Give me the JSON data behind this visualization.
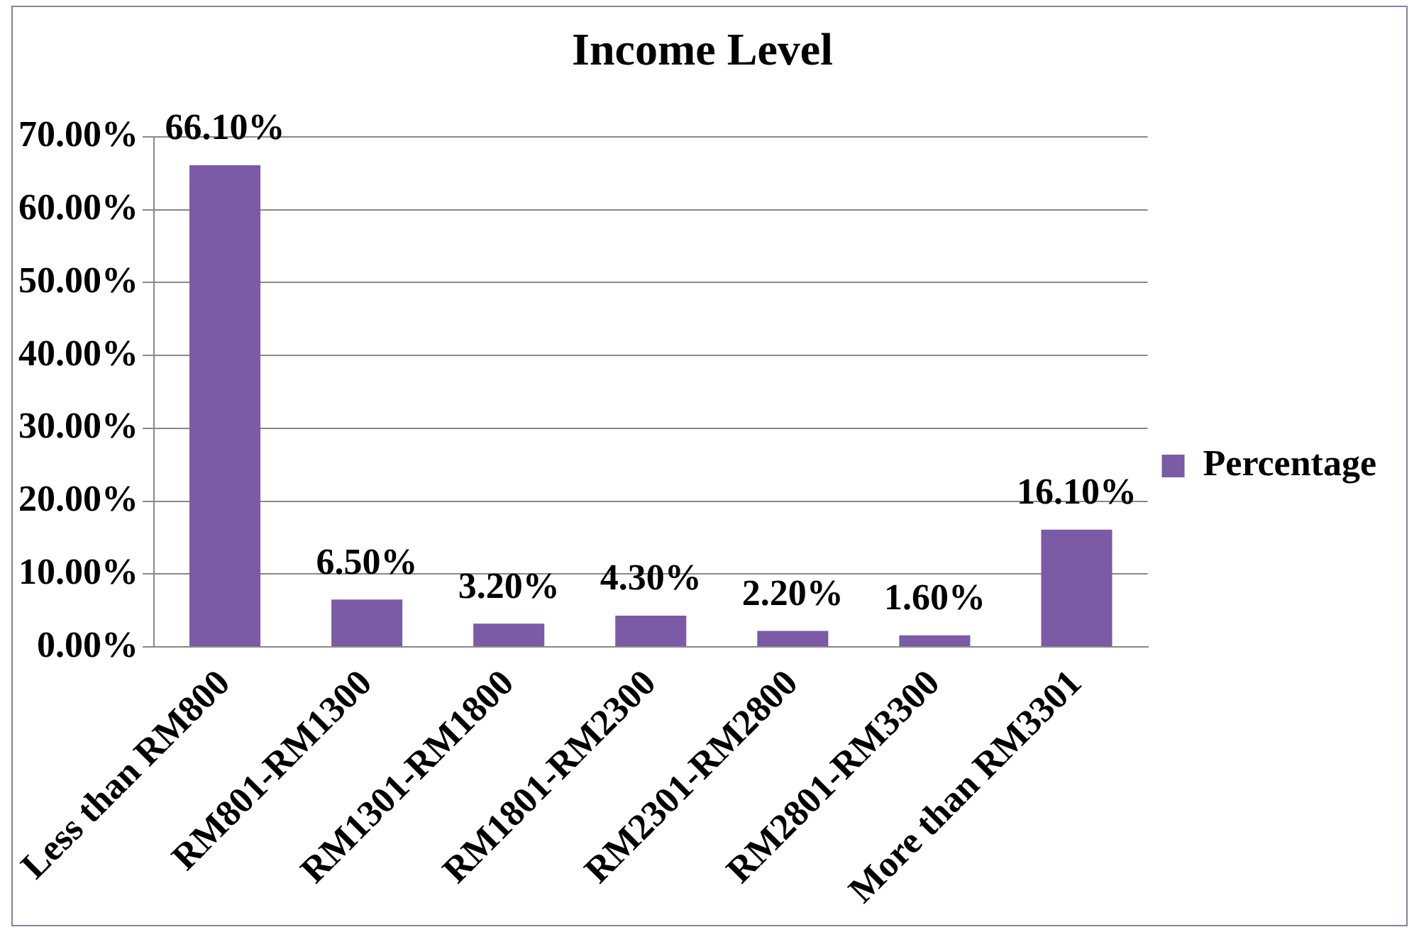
{
  "chart_data": {
    "type": "bar",
    "title": "Income Level",
    "categories": [
      "Less than RM800",
      "RM801-RM1300",
      "RM1301-RM1800",
      "RM1801-RM2300",
      "RM2301-RM2800",
      "RM2801-RM3300",
      "More than RM3301"
    ],
    "series": [
      {
        "name": "Percentage",
        "color": "#7b5aa6",
        "values": [
          66.1,
          6.5,
          3.2,
          4.3,
          2.2,
          1.6,
          16.1
        ]
      }
    ],
    "value_labels": [
      "66.10%",
      "6.50%",
      "3.20%",
      "4.30%",
      "2.20%",
      "1.60%",
      "16.10%"
    ],
    "ylim": [
      0,
      70
    ],
    "yticks": [
      {
        "value": 0,
        "label": "0.00%"
      },
      {
        "value": 10,
        "label": "10.00%"
      },
      {
        "value": 20,
        "label": "20.00%"
      },
      {
        "value": 30,
        "label": "30.00%"
      },
      {
        "value": 40,
        "label": "40.00%"
      },
      {
        "value": 50,
        "label": "50.00%"
      },
      {
        "value": 60,
        "label": "60.00%"
      },
      {
        "value": 70,
        "label": "70.00%"
      }
    ],
    "grid": "y",
    "legend": "right"
  }
}
